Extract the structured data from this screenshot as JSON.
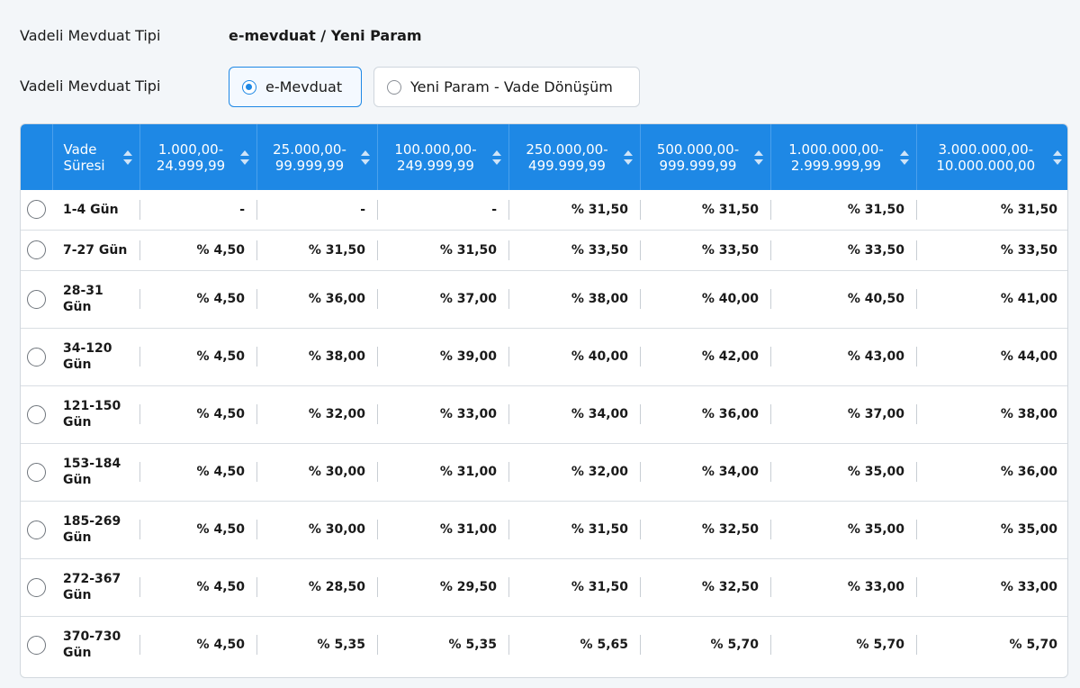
{
  "info": {
    "label": "Vadeli Mevduat Tipi",
    "value": "e-mevduat / Yeni Param"
  },
  "selector": {
    "label": "Vadeli Mevduat Tipi",
    "options": [
      {
        "label": "e-Mevduat",
        "selected": true
      },
      {
        "label": "Yeni Param - Vade Dönüşüm",
        "selected": false
      }
    ]
  },
  "table": {
    "headers": [
      [
        "Vade",
        "Süresi"
      ],
      [
        "1.000,00-",
        "24.999,99"
      ],
      [
        "25.000,00-",
        "99.999,99"
      ],
      [
        "100.000,00-",
        "249.999,99"
      ],
      [
        "250.000,00-",
        "499.999,99"
      ],
      [
        "500.000,00-",
        "999.999,99"
      ],
      [
        "1.000.000,00-",
        "2.999.999,99"
      ],
      [
        "3.000.000,00-",
        "10.000.000,00"
      ]
    ],
    "rows": [
      {
        "duration": [
          "1-4 Gün"
        ],
        "rates": [
          "-",
          "-",
          "-",
          "% 31,50",
          "% 31,50",
          "% 31,50",
          "% 31,50"
        ]
      },
      {
        "duration": [
          "7-27 Gün"
        ],
        "rates": [
          "% 4,50",
          "% 31,50",
          "% 31,50",
          "% 33,50",
          "% 33,50",
          "% 33,50",
          "% 33,50"
        ]
      },
      {
        "duration": [
          "28-31",
          "Gün"
        ],
        "rates": [
          "% 4,50",
          "% 36,00",
          "% 37,00",
          "% 38,00",
          "% 40,00",
          "% 40,50",
          "% 41,00"
        ]
      },
      {
        "duration": [
          "34-120",
          "Gün"
        ],
        "rates": [
          "% 4,50",
          "% 38,00",
          "% 39,00",
          "% 40,00",
          "% 42,00",
          "% 43,00",
          "% 44,00"
        ]
      },
      {
        "duration": [
          "121-150",
          "Gün"
        ],
        "rates": [
          "% 4,50",
          "% 32,00",
          "% 33,00",
          "% 34,00",
          "% 36,00",
          "% 37,00",
          "% 38,00"
        ]
      },
      {
        "duration": [
          "153-184",
          "Gün"
        ],
        "rates": [
          "% 4,50",
          "% 30,00",
          "% 31,00",
          "% 32,00",
          "% 34,00",
          "% 35,00",
          "% 36,00"
        ]
      },
      {
        "duration": [
          "185-269",
          "Gün"
        ],
        "rates": [
          "% 4,50",
          "% 30,00",
          "% 31,00",
          "% 31,50",
          "% 32,50",
          "% 35,00",
          "% 35,00"
        ]
      },
      {
        "duration": [
          "272-367",
          "Gün"
        ],
        "rates": [
          "% 4,50",
          "% 28,50",
          "% 29,50",
          "% 31,50",
          "% 32,50",
          "% 33,00",
          "% 33,00"
        ]
      },
      {
        "duration": [
          "370-730",
          "Gün"
        ],
        "rates": [
          "% 4,50",
          "% 5,35",
          "% 5,35",
          "% 5,65",
          "% 5,70",
          "% 5,70",
          "% 5,70"
        ]
      }
    ]
  },
  "colors": {
    "header_bg": "#1e88e5",
    "accent": "#1e88e5",
    "page_bg": "#f3f6f9"
  }
}
